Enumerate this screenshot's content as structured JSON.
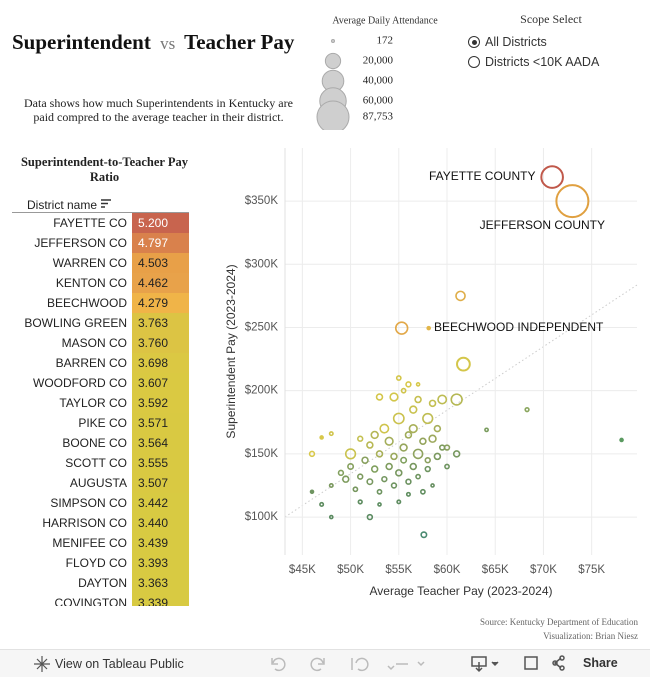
{
  "header": {
    "title_parts": [
      "Superintendent",
      "vs",
      "Teacher Pay"
    ],
    "description": "Data shows how much Superintendents in Kentucky are paid compred to the average teacher in their district."
  },
  "size_legend": {
    "title": "Average Daily Attendance",
    "items": [
      172,
      {
        "value": 20000,
        "label": "20,000"
      },
      {
        "value": 40000,
        "label": "40,000"
      },
      {
        "value": 60000,
        "label": "60,000"
      },
      {
        "value": 87753,
        "label": "87,753"
      }
    ]
  },
  "scope": {
    "title": "Scope Select",
    "options": [
      "All Districts",
      "Districts <10K AADA"
    ],
    "selected": 0
  },
  "table": {
    "title": "Superintendent-to-Teacher Pay Ratio",
    "column": "District name",
    "rows": [
      [
        "FAYETTE CO",
        "5.200"
      ],
      [
        "JEFFERSON CO",
        "4.797"
      ],
      [
        "WARREN CO",
        "4.503"
      ],
      [
        "KENTON CO",
        "4.462"
      ],
      [
        "BEECHWOOD",
        "4.279"
      ],
      [
        "BOWLING GREEN",
        "3.763"
      ],
      [
        "MASON CO",
        "3.760"
      ],
      [
        "BARREN CO",
        "3.698"
      ],
      [
        "WOODFORD CO",
        "3.607"
      ],
      [
        "TAYLOR CO",
        "3.592"
      ],
      [
        "PIKE CO",
        "3.571"
      ],
      [
        "BOONE CO",
        "3.564"
      ],
      [
        "SCOTT CO",
        "3.555"
      ],
      [
        "AUGUSTA",
        "3.507"
      ],
      [
        "SIMPSON CO",
        "3.442"
      ],
      [
        "HARRISON CO",
        "3.440"
      ],
      [
        "MENIFEE CO",
        "3.439"
      ],
      [
        "FLOYD CO",
        "3.393"
      ],
      [
        "DAYTON",
        "3.363"
      ],
      [
        "COVINGTON",
        "3.339"
      ]
    ],
    "colors": [
      "#c8644e",
      "#d9814c",
      "#e8a048",
      "#e8a24a",
      "#f0b448",
      "#dcc444",
      "#dcc444",
      "#dbc843",
      "#dac942",
      "#dac942",
      "#d9c942",
      "#d9c942",
      "#d9c942",
      "#d9c942",
      "#d8ca42",
      "#d8ca42",
      "#d8ca42",
      "#d8ca42",
      "#d8ca42",
      "#d8ca42"
    ]
  },
  "chart_data": {
    "type": "scatter",
    "xlabel": "Average Teacher Pay (2023-2024)",
    "ylabel": "Superintendent Pay (2023-2024)",
    "xlim": [
      43200,
      79700
    ],
    "ylim": [
      70000,
      392000
    ],
    "grid": true,
    "xticks": [
      {
        "value": 45000,
        "label": "$45K"
      },
      {
        "value": 50000,
        "label": "$50K"
      },
      {
        "value": 55000,
        "label": "$55K"
      },
      {
        "value": 60000,
        "label": "$60K"
      },
      {
        "value": 65000,
        "label": "$65K"
      },
      {
        "value": 70000,
        "label": "$70K"
      },
      {
        "value": 75000,
        "label": "$75K"
      }
    ],
    "yticks": [
      {
        "value": 100000,
        "label": "$100K"
      },
      {
        "value": 150000,
        "label": "$150K"
      },
      {
        "value": 200000,
        "label": "$200K"
      },
      {
        "value": 250000,
        "label": "$250K"
      },
      {
        "value": 300000,
        "label": "$300K"
      },
      {
        "value": 350000,
        "label": "$350K"
      }
    ],
    "annotations": [
      "FAYETTE COUNTY",
      "JEFFERSON COUNTY",
      "BEECHWOOD INDEPENDENT"
    ],
    "x": [
      53000,
      53500,
      54500,
      55000,
      56000,
      56500,
      57000,
      58000,
      58500,
      59500,
      61000,
      46000,
      47000,
      48000,
      50000,
      51000,
      52000,
      52500,
      53000,
      54000,
      54500,
      55500,
      56000,
      56500,
      57000,
      57500,
      58000,
      58500,
      59000,
      60000,
      55000,
      55500,
      57000,
      48000,
      49000,
      49500,
      50000,
      50500,
      51000,
      51500,
      52000,
      52500,
      53000,
      53500,
      54000,
      54500,
      55000,
      55500,
      56000,
      56500,
      57000,
      58000,
      59000,
      59500,
      60000,
      61000,
      46000,
      47000,
      48000,
      52000,
      55000,
      57500,
      51000,
      53000,
      56000,
      58500,
      70900,
      73000,
      58100,
      55300,
      61400,
      61700,
      57600,
      78100,
      68300,
      64100
    ],
    "series": [
      {
        "values": [
          195000,
          170000,
          195000,
          178000,
          205000,
          185000,
          193000,
          178000,
          190000,
          193000,
          193000,
          150000,
          163000,
          166000,
          150000,
          162000,
          157000,
          165000,
          150000,
          160000,
          148000,
          155000,
          165000,
          170000,
          150000,
          160000,
          145000,
          162000,
          170000,
          155000,
          210000,
          200000,
          205000,
          125000,
          135000,
          130000,
          140000,
          122000,
          132000,
          145000,
          128000,
          138000,
          120000,
          130000,
          140000,
          125000,
          135000,
          145000,
          128000,
          140000,
          132000,
          138000,
          148000,
          155000,
          140000,
          150000,
          120000,
          110000,
          100000,
          100000,
          112000,
          120000,
          112000,
          110000,
          118000,
          125000,
          369000,
          350000,
          249500,
          249500,
          275000,
          221000,
          86000,
          161000,
          185000,
          169000
        ],
        "sizes": [
          3000,
          6000,
          5000,
          9000,
          2000,
          4000,
          3000,
          8000,
          3000,
          6000,
          10000,
          2000,
          300,
          1000,
          8000,
          2000,
          3000,
          4000,
          3000,
          5000,
          3000,
          4000,
          3000,
          5000,
          7000,
          3000,
          2000,
          4000,
          3000,
          2000,
          1500,
          1500,
          800,
          1000,
          2000,
          3000,
          2500,
          1500,
          2000,
          3000,
          2500,
          3000,
          1500,
          2000,
          3000,
          2000,
          3000,
          2500,
          2000,
          3000,
          1500,
          2000,
          3000,
          2000,
          1500,
          3000,
          200,
          1000,
          800,
          2000,
          1000,
          1500,
          1200,
          800,
          1000,
          800,
          40000,
          87753,
          200,
          12000,
          7000,
          14000,
          2500,
          150,
          1200,
          900
        ],
        "colors": [
          "#d4c64a",
          "#cfc44c",
          "#d2c64a",
          "#cbc24e",
          "#d8c84a",
          "#c9c24e",
          "#c6c050",
          "#bfbd52",
          "#c3bf50",
          "#bdbc52",
          "#b5b854",
          "#d8c84a",
          "#d8c84a",
          "#d0c44c",
          "#c9c24e",
          "#c4c050",
          "#b8b854",
          "#b4b656",
          "#a8b058",
          "#a4ae5a",
          "#9aa85c",
          "#96a65c",
          "#a0ac5a",
          "#a8b058",
          "#8ea25e",
          "#94a45c",
          "#8aa05e",
          "#9ca85c",
          "#a6ae5a",
          "#8aa05e",
          "#d4c64a",
          "#d0c44c",
          "#d6c84a",
          "#7a985e",
          "#82a05e",
          "#7e9c5e",
          "#86a05e",
          "#76965e",
          "#7c9a5e",
          "#88a05e",
          "#789860",
          "#80a05e",
          "#6e9460",
          "#749660",
          "#7e9c5e",
          "#6e9460",
          "#789860",
          "#80a05e",
          "#6c9260",
          "#76965e",
          "#6e9460",
          "#6e9460",
          "#7a985e",
          "#7e9c5e",
          "#6e9460",
          "#789860",
          "#6e9460",
          "#5e8c60",
          "#5a8a60",
          "#5a8a60",
          "#5e8c60",
          "#628e60",
          "#5e8c60",
          "#5c8c60",
          "#608e60",
          "#668e60",
          "#c0584a",
          "#e0a040",
          "#e2b64a",
          "#e2a848",
          "#dfae4a",
          "#d4c64a",
          "#4a8a70",
          "#5a9a60",
          "#8aa65e",
          "#7a9c5e"
        ]
      }
    ]
  },
  "footer": {
    "source": "Source: Kentucky Department of Education",
    "credit": "Visualization: Brian Niesz"
  },
  "toolbar": {
    "view": "View on Tableau Public",
    "share": "Share"
  }
}
